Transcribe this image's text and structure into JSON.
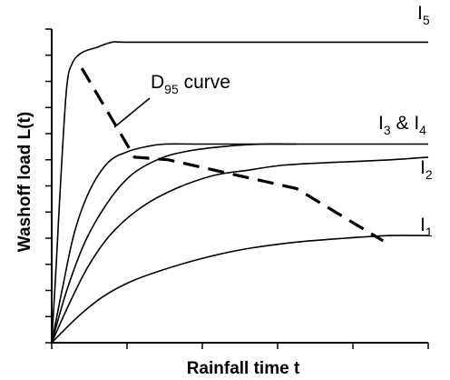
{
  "chart_data": {
    "type": "line",
    "title": "",
    "xlabel": "Rainfall time t",
    "ylabel": "Washoff load L(t)",
    "xlim": [
      0,
      10
    ],
    "ylim": [
      0,
      12
    ],
    "x_ticks": 5,
    "y_ticks": 12,
    "grid": false,
    "legend": "none",
    "series": [
      {
        "label": {
          "main": "I",
          "sub": "5",
          "tail": ""
        },
        "points": [
          [
            0,
            0
          ],
          [
            0.12,
            3.0
          ],
          [
            0.25,
            6.5
          ],
          [
            0.4,
            9.8
          ],
          [
            0.55,
            10.7
          ],
          [
            0.8,
            11.1
          ],
          [
            1.2,
            11.3
          ],
          [
            1.6,
            11.5
          ],
          [
            2,
            11.5
          ],
          [
            4,
            11.5
          ],
          [
            6,
            11.5
          ],
          [
            8,
            11.5
          ],
          [
            10,
            11.5
          ]
        ]
      },
      {
        "label": {
          "main": "I",
          "sub": "3",
          "tail": " & I",
          "sub2": "4"
        },
        "points": [
          [
            0,
            0
          ],
          [
            0.3,
            2.2
          ],
          [
            0.6,
            4.2
          ],
          [
            1,
            5.8
          ],
          [
            1.5,
            6.9
          ],
          [
            2,
            7.3
          ],
          [
            2.5,
            7.5
          ],
          [
            3,
            7.6
          ],
          [
            4,
            7.6
          ],
          [
            6,
            7.6
          ],
          [
            8,
            7.6
          ],
          [
            10,
            7.6
          ]
        ]
      },
      {
        "label": null,
        "points": [
          [
            0,
            0
          ],
          [
            0.4,
            2.0
          ],
          [
            0.9,
            3.9
          ],
          [
            1.5,
            5.4
          ],
          [
            2.1,
            6.4
          ],
          [
            2.8,
            7.0
          ],
          [
            3.5,
            7.3
          ],
          [
            4.5,
            7.5
          ],
          [
            5.6,
            7.6
          ],
          [
            6.5,
            7.6
          ]
        ]
      },
      {
        "label": {
          "main": "I",
          "sub": "2",
          "tail": ""
        },
        "points": [
          [
            0,
            0
          ],
          [
            0.5,
            1.6
          ],
          [
            1,
            3.0
          ],
          [
            1.6,
            4.2
          ],
          [
            2.4,
            5.2
          ],
          [
            3.3,
            5.9
          ],
          [
            4.3,
            6.4
          ],
          [
            5.2,
            6.6
          ],
          [
            6.2,
            6.8
          ],
          [
            7.5,
            6.9
          ],
          [
            9,
            7.0
          ],
          [
            10,
            7.1
          ]
        ]
      },
      {
        "label": {
          "main": "I",
          "sub": "1",
          "tail": ""
        },
        "points": [
          [
            0,
            0
          ],
          [
            0.7,
            1.0
          ],
          [
            1.4,
            1.8
          ],
          [
            2.2,
            2.4
          ],
          [
            3.2,
            2.9
          ],
          [
            4.2,
            3.3
          ],
          [
            5.2,
            3.6
          ],
          [
            6.5,
            3.85
          ],
          [
            7.8,
            4.0
          ],
          [
            9,
            4.1
          ],
          [
            10,
            4.1
          ]
        ]
      }
    ],
    "d95_curve": {
      "label": {
        "main": "D",
        "sub": "95",
        "tail": " curve"
      },
      "points": [
        [
          0.8,
          10.5
        ],
        [
          2.2,
          7.1
        ],
        [
          3.1,
          7.0
        ],
        [
          6.5,
          5.9
        ],
        [
          8.8,
          3.9
        ]
      ]
    }
  }
}
